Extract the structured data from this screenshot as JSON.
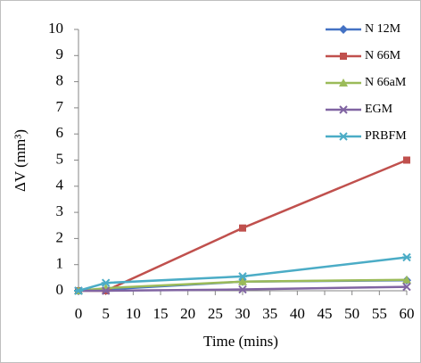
{
  "chart_data": {
    "type": "line",
    "x_label": "Time (mins)",
    "y_label": "ΔV (mm³)",
    "x": [
      0,
      5,
      30,
      60
    ],
    "series": [
      {
        "name": "N 12M",
        "color": "#4472c4",
        "marker": "diamond",
        "values": [
          0,
          0.05,
          0.35,
          0.4
        ]
      },
      {
        "name": "N 66M",
        "color": "#c0504d",
        "marker": "square",
        "values": [
          0,
          0,
          2.4,
          5.0
        ]
      },
      {
        "name": "N 66aM",
        "color": "#9bbb59",
        "marker": "triangle",
        "values": [
          0,
          0.1,
          0.35,
          0.42
        ]
      },
      {
        "name": "EGM",
        "color": "#8064a2",
        "marker": "x",
        "values": [
          0,
          0,
          0.05,
          0.15
        ]
      },
      {
        "name": "PRBFM",
        "color": "#4bacc6",
        "marker": "star",
        "values": [
          0,
          0.3,
          0.55,
          1.28
        ]
      }
    ],
    "xlim": [
      0,
      60
    ],
    "xticks": [
      0,
      5,
      10,
      15,
      20,
      25,
      30,
      35,
      40,
      45,
      50,
      55,
      60
    ],
    "ylim": [
      0,
      10
    ],
    "yticks": [
      0,
      1,
      2,
      3,
      4,
      5,
      6,
      7,
      8,
      9,
      10
    ],
    "grid": false,
    "legend": "top-right"
  }
}
